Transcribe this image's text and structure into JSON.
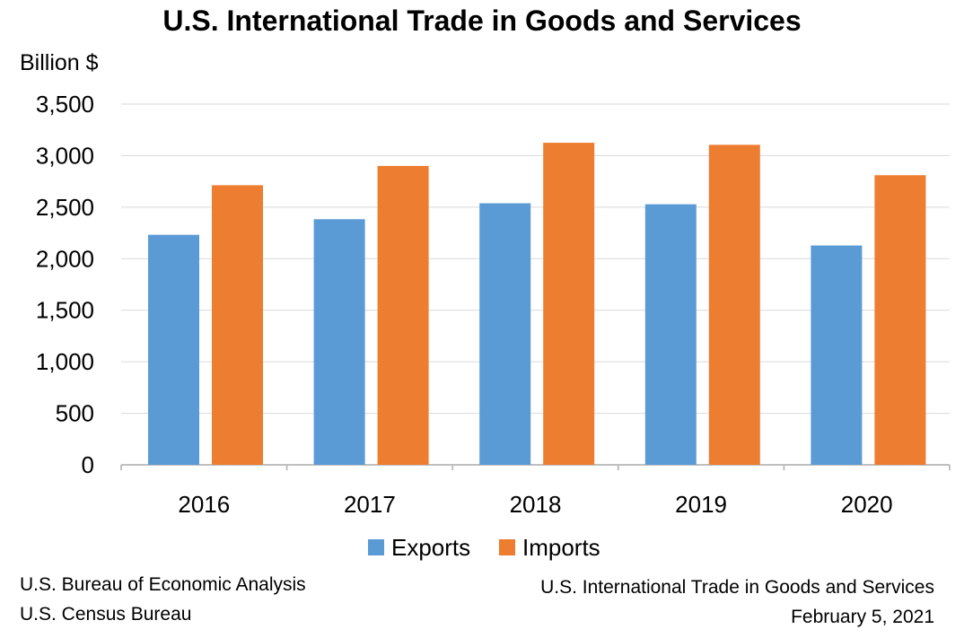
{
  "chart_data": {
    "type": "bar",
    "title": "U.S. International Trade in Goods and Services",
    "xlabel": "",
    "ylabel": "Billion $",
    "ylim": [
      0,
      3500
    ],
    "yticks": [
      0,
      500,
      1000,
      1500,
      2000,
      2500,
      3000,
      3500
    ],
    "ytick_labels": [
      "0",
      "500",
      "1,000",
      "1,500",
      "2,000",
      "2,500",
      "3,000",
      "3,500"
    ],
    "grid": true,
    "categories": [
      "2016",
      "2017",
      "2018",
      "2019",
      "2020"
    ],
    "series": [
      {
        "name": "Exports",
        "color": "#5b9bd5",
        "values": [
          2232,
          2383,
          2538,
          2528,
          2128
        ]
      },
      {
        "name": "Imports",
        "color": "#ed7d31",
        "values": [
          2713,
          2900,
          3125,
          3105,
          2810
        ]
      }
    ],
    "legend": "bottom"
  },
  "footer": {
    "source_line1": "U.S. Bureau of Economic Analysis",
    "source_line2": "U.S. Census Bureau",
    "release_title": "U.S. International Trade in Goods and Services",
    "release_date": "February 5, 2021"
  }
}
